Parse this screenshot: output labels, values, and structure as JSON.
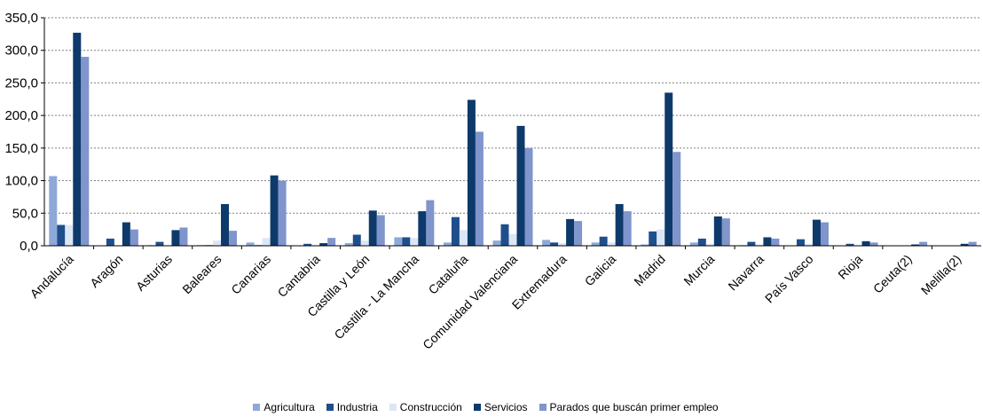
{
  "chart_data": {
    "type": "bar",
    "categories": [
      "Andalucía",
      "Aragón",
      "Asturias",
      "Baleares",
      "Canarias",
      "Cantabria",
      "Castilla y León",
      "Castilla - La Mancha",
      "Cataluña",
      "Comunidad Valenciana",
      "Extremadura",
      "Galicia",
      "Madrid",
      "Murcia",
      "Navarra",
      "País Vasco",
      "Rioja",
      "Ceuta(2)",
      "Melilla(2)"
    ],
    "series": [
      {
        "name": "Agricultura",
        "color": "#8ea9d8",
        "values": [
          107,
          0.5,
          1,
          1,
          5,
          0.5,
          4,
          13,
          5,
          8,
          9,
          5,
          2,
          5,
          1,
          0,
          0.5,
          0.2,
          0.2
        ]
      },
      {
        "name": "Industria",
        "color": "#1f4e8c",
        "values": [
          32,
          11,
          6,
          1,
          1,
          3,
          17,
          13,
          44,
          33,
          5,
          14,
          22,
          11,
          6,
          10,
          3,
          0.2,
          0.2
        ]
      },
      {
        "name": "Construcción",
        "color": "#dce6f7",
        "values": [
          32,
          1,
          1,
          8,
          12,
          1,
          8,
          12,
          24,
          18,
          4,
          5,
          25,
          3,
          2,
          3,
          1,
          0.5,
          0.5
        ]
      },
      {
        "name": "Servicios",
        "color": "#0d3a6b",
        "values": [
          327,
          36,
          24,
          64,
          108,
          4,
          54,
          53,
          224,
          184,
          41,
          64,
          235,
          45,
          13,
          40,
          7,
          2,
          3
        ]
      },
      {
        "name": "Parados que buscán primer empleo",
        "color": "#7f95cc",
        "values": [
          290,
          25,
          28,
          23,
          100,
          12,
          47,
          70,
          175,
          150,
          38,
          53,
          144,
          42,
          11,
          36,
          5,
          6,
          6
        ]
      }
    ],
    "ylim": [
      0,
      350
    ],
    "yticks": [
      "0,0",
      "50,0",
      "100,0",
      "150,0",
      "200,0",
      "250,0",
      "300,0",
      "350,0"
    ],
    "ytick_values": [
      0,
      50,
      100,
      150,
      200,
      250,
      300,
      350
    ],
    "grid": true,
    "legend_position": "bottom",
    "title": "",
    "xlabel": "",
    "ylabel": ""
  }
}
